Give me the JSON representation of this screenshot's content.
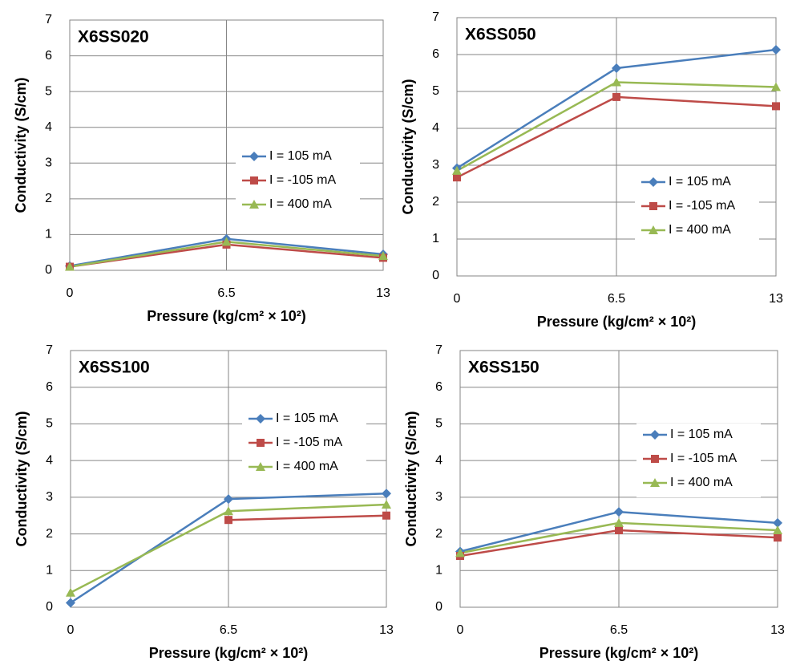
{
  "chart_data": [
    {
      "type": "line",
      "title": "X6SS020",
      "x_label": "Pressure (kg/cm² × 10²)",
      "y_label": "Conductivity (S/cm)",
      "x": [
        0,
        6.5,
        13
      ],
      "xlim": [
        0,
        13
      ],
      "xticks": [
        0,
        6.5,
        13
      ],
      "ylim": [
        0,
        7
      ],
      "yticks": [
        0,
        1,
        2,
        3,
        4,
        5,
        6,
        7
      ],
      "grid": true,
      "legend": "right",
      "series": [
        {
          "name": "I = 105 mA",
          "color": "#4a7ebb",
          "marker": "diamond",
          "values": [
            0.12,
            0.88,
            0.45
          ]
        },
        {
          "name": "I = -105 mA",
          "color": "#be4b48",
          "marker": "square",
          "values": [
            0.1,
            0.72,
            0.35
          ]
        },
        {
          "name": "I = 400 mA",
          "color": "#98b954",
          "marker": "triangle",
          "values": [
            0.1,
            0.8,
            0.4
          ]
        }
      ]
    },
    {
      "type": "line",
      "title": "X6SS050",
      "x_label": "Pressure (kg/cm² × 10²)",
      "y_label": "Conductivity (S/cm)",
      "x": [
        0,
        6.5,
        13
      ],
      "xlim": [
        0,
        13
      ],
      "xticks": [
        0,
        6.5,
        13
      ],
      "ylim": [
        0,
        7
      ],
      "yticks": [
        0,
        1,
        2,
        3,
        4,
        5,
        6,
        7
      ],
      "grid": true,
      "legend": "right",
      "series": [
        {
          "name": "I = 105 mA",
          "color": "#4a7ebb",
          "marker": "diamond",
          "values": [
            2.92,
            5.63,
            6.13
          ]
        },
        {
          "name": "I = -105 mA",
          "color": "#be4b48",
          "marker": "square",
          "values": [
            2.67,
            4.85,
            4.6
          ]
        },
        {
          "name": "I = 400 mA",
          "color": "#98b954",
          "marker": "triangle",
          "values": [
            2.85,
            5.25,
            5.12
          ]
        }
      ]
    },
    {
      "type": "line",
      "title": "X6SS100",
      "x_label": "Pressure (kg/cm² × 10²)",
      "y_label": "Conductivity (S/cm)",
      "x": [
        0,
        6.5,
        13
      ],
      "xlim": [
        0,
        13
      ],
      "xticks": [
        0,
        6.5,
        13
      ],
      "ylim": [
        0,
        7
      ],
      "yticks": [
        0,
        1,
        2,
        3,
        4,
        5,
        6,
        7
      ],
      "grid": true,
      "legend": "right",
      "series": [
        {
          "name": "I = 105 mA",
          "color": "#4a7ebb",
          "marker": "diamond",
          "values": [
            0.12,
            2.95,
            3.1
          ]
        },
        {
          "name": "I = -105 mA",
          "color": "#be4b48",
          "marker": "square",
          "values": [
            null,
            2.38,
            2.5
          ]
        },
        {
          "name": "I = 400 mA",
          "color": "#98b954",
          "marker": "triangle",
          "values": [
            0.4,
            2.62,
            2.8
          ]
        }
      ]
    },
    {
      "type": "line",
      "title": "X6SS150",
      "x_label": "Pressure (kg/cm² × 10²)",
      "y_label": "Conductivity (S/cm)",
      "x": [
        0,
        6.5,
        13
      ],
      "xlim": [
        0,
        13
      ],
      "xticks": [
        0,
        6.5,
        13
      ],
      "ylim": [
        0,
        7
      ],
      "yticks": [
        0,
        1,
        2,
        3,
        4,
        5,
        6,
        7
      ],
      "grid": true,
      "legend": "right",
      "series": [
        {
          "name": "I = 105 mA",
          "color": "#4a7ebb",
          "marker": "diamond",
          "values": [
            1.52,
            2.6,
            2.3
          ]
        },
        {
          "name": "I = -105 mA",
          "color": "#be4b48",
          "marker": "square",
          "values": [
            1.4,
            2.1,
            1.9
          ]
        },
        {
          "name": "I = 400 mA",
          "color": "#98b954",
          "marker": "triangle",
          "values": [
            1.48,
            2.3,
            2.1
          ]
        }
      ]
    }
  ]
}
